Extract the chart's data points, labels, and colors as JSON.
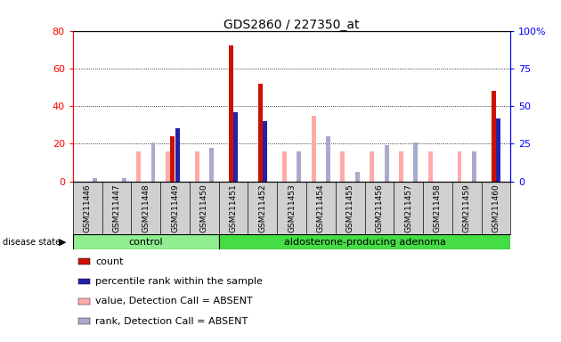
{
  "title": "GDS2860 / 227350_at",
  "samples": [
    "GSM211446",
    "GSM211447",
    "GSM211448",
    "GSM211449",
    "GSM211450",
    "GSM211451",
    "GSM211452",
    "GSM211453",
    "GSM211454",
    "GSM211455",
    "GSM211456",
    "GSM211457",
    "GSM211458",
    "GSM211459",
    "GSM211460"
  ],
  "count": [
    0,
    0,
    0,
    24,
    0,
    72,
    52,
    0,
    0,
    0,
    0,
    0,
    0,
    0,
    48
  ],
  "percentile_rank": [
    0,
    0,
    0,
    35,
    0,
    46,
    40,
    0,
    0,
    0,
    0,
    0,
    0,
    0,
    42
  ],
  "value_absent": [
    0,
    0,
    16,
    16,
    16,
    0,
    0,
    16,
    35,
    16,
    16,
    16,
    16,
    16,
    0
  ],
  "rank_absent": [
    2,
    2,
    26,
    0,
    22,
    0,
    0,
    20,
    30,
    6,
    24,
    26,
    0,
    20,
    0
  ],
  "control_count": 5,
  "ylim_left": [
    0,
    80
  ],
  "ylim_right": [
    0,
    100
  ],
  "yticks_left": [
    0,
    20,
    40,
    60,
    80
  ],
  "yticks_right": [
    0,
    25,
    50,
    75,
    100
  ],
  "group_labels": [
    "control",
    "aldosterone-producing adenoma"
  ],
  "bar_color_count": "#cc1100",
  "bar_color_percentile": "#2222aa",
  "bar_color_value_absent": "#ffaaaa",
  "bar_color_rank_absent": "#aaaacc",
  "legend_items": [
    "count",
    "percentile rank within the sample",
    "value, Detection Call = ABSENT",
    "rank, Detection Call = ABSENT"
  ],
  "legend_colors": [
    "#cc1100",
    "#2222aa",
    "#ffaaaa",
    "#aaaacc"
  ]
}
